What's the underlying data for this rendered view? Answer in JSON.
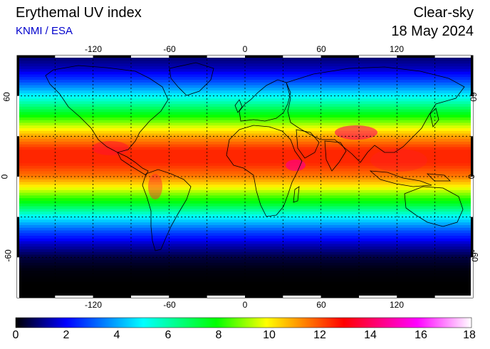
{
  "header": {
    "title": "Erythemal UV index",
    "source": "KNMI / ESA",
    "product": "Clear-sky",
    "date": "18 May 2024"
  },
  "map": {
    "projection": "equirectangular",
    "lon_range": [
      -180,
      180
    ],
    "lat_range": [
      -90,
      90
    ],
    "grid_spacing_deg": 30,
    "lon_labels": [
      "-120",
      "-60",
      "0",
      "60",
      "120"
    ],
    "lat_labels": [
      "60",
      "0",
      "-60"
    ],
    "coastlines": true
  },
  "colorbar": {
    "min": 0,
    "max": 18,
    "tick_labels": [
      "0",
      "2",
      "4",
      "6",
      "8",
      "10",
      "12",
      "14",
      "16",
      "18"
    ],
    "colors": [
      "#000000",
      "#0000ff",
      "#00ffff",
      "#00ff00",
      "#ffff00",
      "#ff0000",
      "#ff00ff",
      "#ffffff"
    ]
  },
  "chart_data": {
    "type": "heatmap",
    "title": "Erythemal UV index",
    "subtitle": "Clear-sky, 18 May 2024",
    "zlim": [
      0,
      18
    ],
    "zonal_profile": [
      {
        "lat": 80,
        "uv": 1.5
      },
      {
        "lat": 70,
        "uv": 3
      },
      {
        "lat": 60,
        "uv": 5
      },
      {
        "lat": 50,
        "uv": 7
      },
      {
        "lat": 40,
        "uv": 9
      },
      {
        "lat": 30,
        "uv": 11
      },
      {
        "lat": 20,
        "uv": 12.5
      },
      {
        "lat": 10,
        "uv": 12.5
      },
      {
        "lat": 0,
        "uv": 11.5
      },
      {
        "lat": -10,
        "uv": 9.5
      },
      {
        "lat": -20,
        "uv": 7.5
      },
      {
        "lat": -30,
        "uv": 5
      },
      {
        "lat": -40,
        "uv": 3
      },
      {
        "lat": -50,
        "uv": 1.5
      },
      {
        "lat": -60,
        "uv": 0.5
      },
      {
        "lat": -70,
        "uv": 0.1
      },
      {
        "lat": -80,
        "uv": 0
      }
    ]
  }
}
